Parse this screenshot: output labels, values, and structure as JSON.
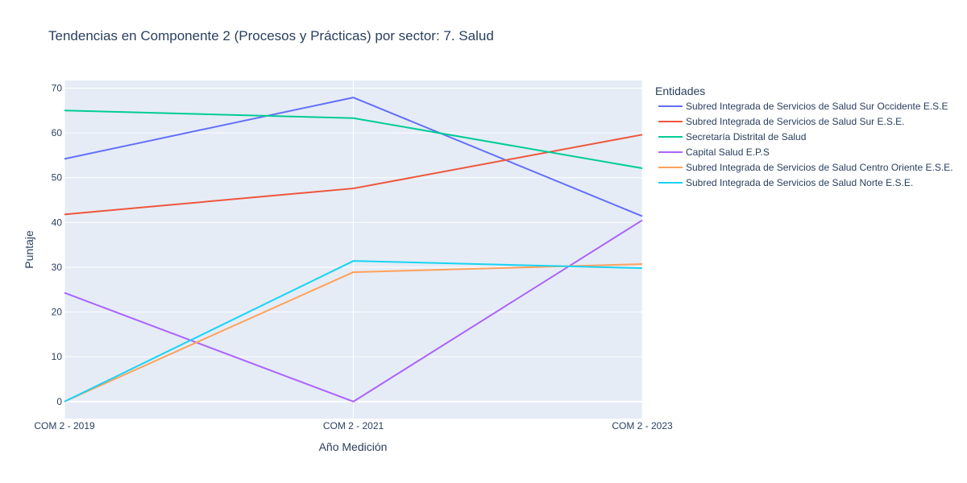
{
  "chart_data": {
    "type": "line",
    "title": "Tendencias en Componente 2 (Procesos y Prácticas) por sector: 7. Salud",
    "xlabel": "Año Medición",
    "ylabel": "Puntaje",
    "categories": [
      "COM 2 - 2019",
      "COM 2 - 2021",
      "COM 2 - 2023"
    ],
    "ylim": [
      -3.8,
      71.7
    ],
    "yticks": [
      0,
      10,
      20,
      30,
      40,
      50,
      60,
      70
    ],
    "grid": true,
    "legend_title": "Entidades",
    "legend_position": "right",
    "series": [
      {
        "name": "Subred Integrada de Servicios de Salud Sur Occidente E.S.E",
        "color": "#636efa",
        "values": [
          54.2,
          67.9,
          41.4
        ]
      },
      {
        "name": "Subred Integrada de Servicios de Salud Sur E.S.E.",
        "color": "#ef553b",
        "values": [
          41.8,
          47.6,
          59.6
        ]
      },
      {
        "name": "Secretaría Distrital de Salud",
        "color": "#00cc96",
        "values": [
          65.0,
          63.3,
          52.1
        ]
      },
      {
        "name": "Capital Salud E.P.S",
        "color": "#ab63fa",
        "values": [
          24.3,
          0.0,
          40.5
        ]
      },
      {
        "name": "Subred Integrada de Servicios de Salud Centro Oriente E.S.E.",
        "color": "#ffa15a",
        "values": [
          0.0,
          28.9,
          30.7
        ]
      },
      {
        "name": "Subred Integrada de Servicios de Salud Norte  E.S.E.",
        "color": "#19d3f3",
        "values": [
          0.0,
          31.4,
          29.8
        ]
      }
    ]
  }
}
